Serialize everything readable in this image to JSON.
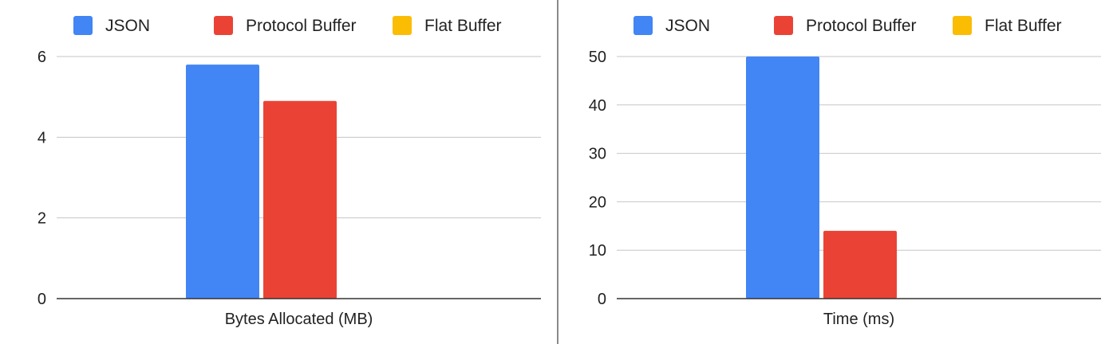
{
  "chart_data": [
    {
      "type": "bar",
      "legend": {
        "position": "top"
      },
      "categories": [
        "Bytes Allocated (MB)"
      ],
      "series": [
        {
          "name": "JSON",
          "color": "#4285F4",
          "values": [
            5.8
          ]
        },
        {
          "name": "Protocol Buffer",
          "color": "#EA4335",
          "values": [
            4.9
          ]
        },
        {
          "name": "Flat Buffer",
          "color": "#FBBC04",
          "values": [
            0
          ]
        }
      ],
      "ylim": [
        0,
        6
      ],
      "yticks": [
        0,
        2,
        4,
        6
      ],
      "grid": true
    },
    {
      "type": "bar",
      "legend": {
        "position": "top"
      },
      "categories": [
        "Time (ms)"
      ],
      "series": [
        {
          "name": "JSON",
          "color": "#4285F4",
          "values": [
            50
          ]
        },
        {
          "name": "Protocol Buffer",
          "color": "#EA4335",
          "values": [
            14
          ]
        },
        {
          "name": "Flat Buffer",
          "color": "#FBBC04",
          "values": [
            0
          ]
        }
      ],
      "ylim": [
        0,
        50
      ],
      "yticks": [
        0,
        10,
        20,
        30,
        40,
        50
      ],
      "grid": true
    }
  ]
}
